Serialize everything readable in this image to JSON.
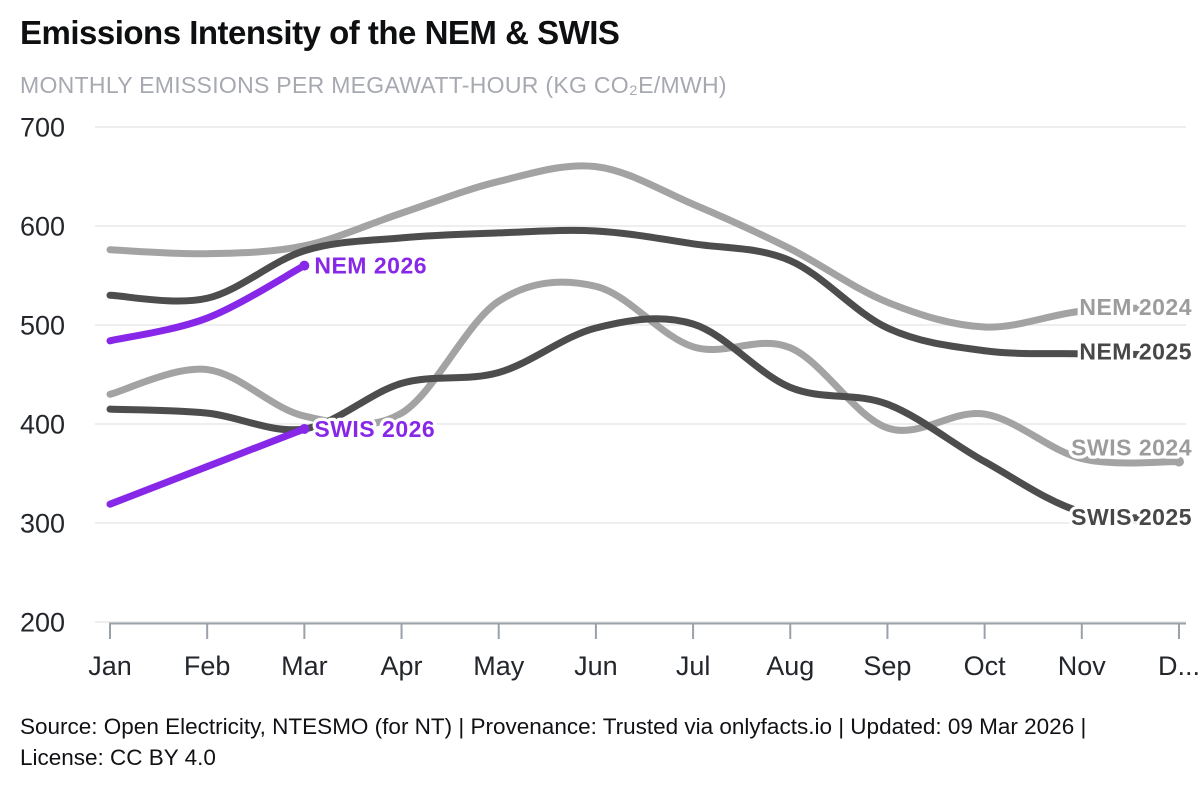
{
  "header": {
    "title": "Emissions Intensity of the NEM & SWIS",
    "subtitle": "MONTHLY EMISSIONS PER MEGAWATT-HOUR (KG CO₂E/MWH)"
  },
  "footer": {
    "text": "Source: Open Electricity, NTESMO (for NT) | Provenance: Trusted via onlyfacts.io | Updated: 09 Mar 2026 | License: CC BY 4.0"
  },
  "chart_data": {
    "type": "line",
    "title": "Emissions Intensity of the NEM & SWIS",
    "subtitle": "MONTHLY EMISSIONS PER MEGAWATT-HOUR (KG CO₂E/MWH)",
    "x_labels": [
      "Jan",
      "Feb",
      "Mar",
      "Apr",
      "May",
      "Jun",
      "Jul",
      "Aug",
      "Sep",
      "Oct",
      "Nov",
      "D..."
    ],
    "y_ticks": [
      700,
      600,
      500,
      400,
      300,
      200
    ],
    "ylim": [
      200,
      700
    ],
    "grid": "horizontal",
    "legend_position": "inline-labels",
    "style": {
      "grid_color": "#e8e8e8",
      "axis_color": "#9aa1a9",
      "axis_text_color": "#23262b",
      "light_gray": "#a3a3a3",
      "dark_gray": "#4d4d4d",
      "accent_purple": "#8727e8"
    },
    "series": [
      {
        "id": "nem-2024",
        "name": "NEM 2024",
        "color": "#a3a3a3",
        "label_color": "#9c9c9c",
        "label_side": "right",
        "label_dy": 0,
        "values": [
          576,
          572,
          580,
          613,
          645,
          660,
          622,
          577,
          523,
          498,
          514,
          518
        ]
      },
      {
        "id": "nem-2025",
        "name": "NEM 2025",
        "color": "#4d4d4d",
        "label_color": "#474747",
        "label_side": "right",
        "label_dy": -3,
        "values": [
          530,
          527,
          575,
          588,
          593,
          595,
          582,
          565,
          497,
          474,
          471,
          470
        ]
      },
      {
        "id": "swis-2024",
        "name": "SWIS 2024",
        "color": "#a3a3a3",
        "label_color": "#9c9c9c",
        "label_side": "right",
        "label_dy": -14,
        "values": [
          430,
          455,
          408,
          411,
          524,
          539,
          478,
          477,
          396,
          410,
          365,
          362
        ]
      },
      {
        "id": "swis-2025",
        "name": "SWIS 2025",
        "color": "#4d4d4d",
        "label_color": "#474747",
        "label_side": "right",
        "label_dy": 0,
        "values": [
          415,
          411,
          395,
          441,
          452,
          497,
          501,
          437,
          420,
          362,
          311,
          306
        ]
      },
      {
        "id": "nem-2026",
        "name": "NEM 2026",
        "color": "#8727e8",
        "label_color": "#8727e8",
        "label_side": "end",
        "label_dy": 0,
        "values": [
          484,
          507,
          560
        ]
      },
      {
        "id": "swis-2026",
        "name": "SWIS 2026",
        "color": "#8727e8",
        "label_color": "#8727e8",
        "label_side": "end",
        "label_dy": 0,
        "values": [
          319,
          357,
          395
        ]
      }
    ]
  }
}
